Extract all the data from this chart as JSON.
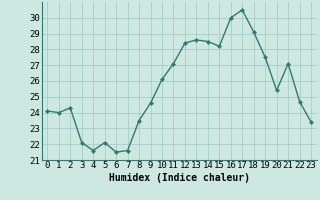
{
  "x": [
    0,
    1,
    2,
    3,
    4,
    5,
    6,
    7,
    8,
    9,
    10,
    11,
    12,
    13,
    14,
    15,
    16,
    17,
    18,
    19,
    20,
    21,
    22,
    23
  ],
  "y": [
    24.1,
    24.0,
    24.3,
    22.1,
    21.6,
    22.1,
    21.5,
    21.6,
    23.5,
    24.6,
    26.1,
    27.1,
    28.4,
    28.6,
    28.5,
    28.2,
    30.0,
    30.5,
    29.1,
    27.5,
    25.4,
    27.1,
    24.7,
    23.4
  ],
  "line_color": "#2d7d6e",
  "marker": "D",
  "markersize": 2.0,
  "linewidth": 1.0,
  "background_color": "#cce8e0",
  "grid_color": "#aaccc4",
  "xlabel": "Humidex (Indice chaleur)",
  "ylim": [
    21,
    31
  ],
  "yticks": [
    21,
    22,
    23,
    24,
    25,
    26,
    27,
    28,
    29,
    30
  ],
  "xticks": [
    0,
    1,
    2,
    3,
    4,
    5,
    6,
    7,
    8,
    9,
    10,
    11,
    12,
    13,
    14,
    15,
    16,
    17,
    18,
    19,
    20,
    21,
    22,
    23
  ],
  "xlabel_fontsize": 7,
  "tick_fontsize": 6.5
}
